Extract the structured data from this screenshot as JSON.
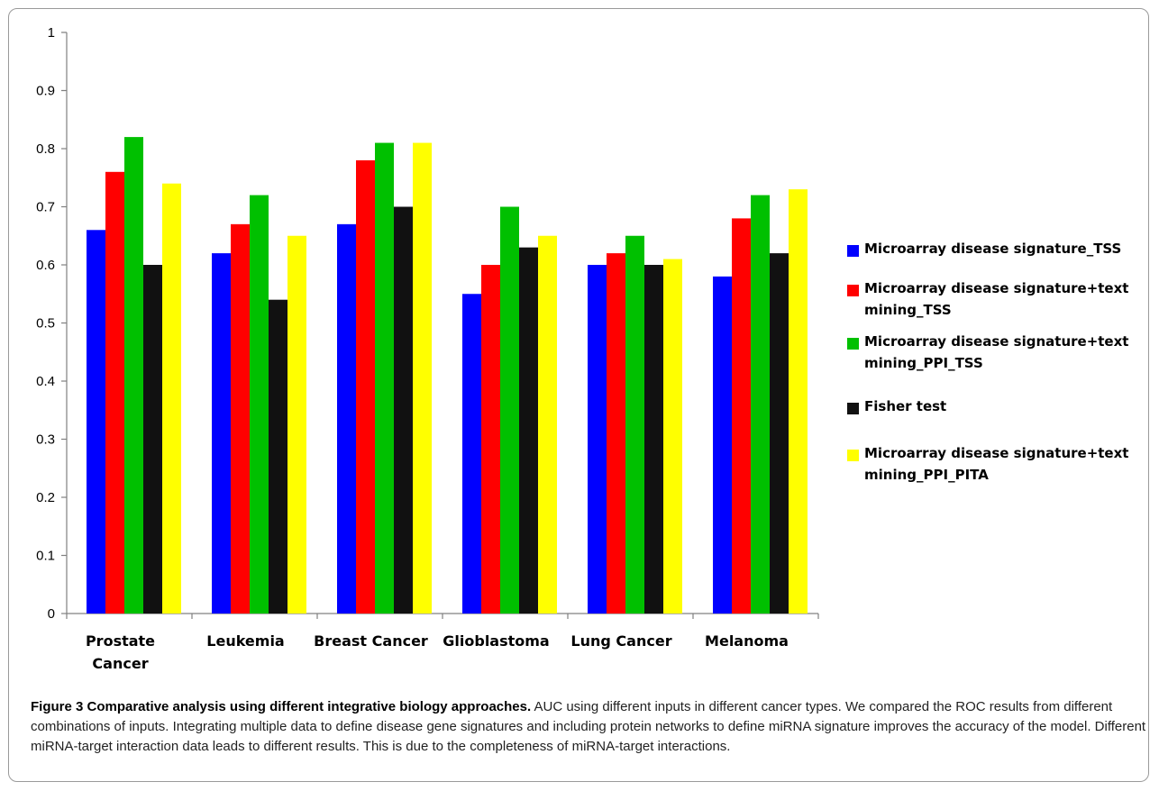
{
  "chart_data": {
    "type": "bar",
    "categories": [
      [
        "Prostate",
        "Cancer"
      ],
      [
        "Leukemia"
      ],
      [
        "Breast Cancer"
      ],
      [
        "Glioblastoma"
      ],
      [
        "Lung Cancer"
      ],
      [
        "Melanoma"
      ]
    ],
    "series": [
      {
        "name": "Microarray disease signature_TSS",
        "color": "#0000ff",
        "values": [
          0.66,
          0.62,
          0.67,
          0.55,
          0.6,
          0.58
        ]
      },
      {
        "name": "Microarray disease signature+text mining_TSS",
        "color": "#ff0000",
        "values": [
          0.76,
          0.67,
          0.78,
          0.6,
          0.62,
          0.68
        ]
      },
      {
        "name": "Microarray disease signature+text mining_PPI_TSS",
        "color": "#00c000",
        "values": [
          0.82,
          0.72,
          0.81,
          0.7,
          0.65,
          0.72
        ]
      },
      {
        "name": "Fisher test",
        "color": "#111111",
        "values": [
          0.6,
          0.54,
          0.7,
          0.63,
          0.6,
          0.62
        ]
      },
      {
        "name": "Microarray disease signature+text mining_PPI_PITA",
        "color": "#ffff00",
        "values": [
          0.74,
          0.65,
          0.81,
          0.65,
          0.61,
          0.73
        ]
      }
    ],
    "yticks": [
      "0",
      "0.1",
      "0.2",
      "0.3",
      "0.4",
      "0.5",
      "0.6",
      "0.7",
      "0.8",
      "0.9",
      "1"
    ],
    "ylim": [
      0,
      1
    ],
    "grid": false,
    "legend_position": "right"
  },
  "legend": {
    "items": [
      {
        "label": "Microarray disease signature_TSS",
        "color": "#0000ff"
      },
      {
        "label": "Microarray disease signature+text mining_TSS",
        "color": "#ff0000"
      },
      {
        "label": "Microarray disease signature+text mining_PPI_TSS",
        "color": "#00c000"
      },
      {
        "label": "Fisher test",
        "color": "#111111"
      },
      {
        "label": "Microarray disease signature+text mining_PPI_PITA",
        "color": "#ffff00"
      }
    ]
  },
  "caption": {
    "title": "Figure 3 Comparative analysis using different integrative biology approaches.",
    "body": " AUC using different inputs in different cancer types. We compared the ROC results from different combinations of inputs. Integrating multiple data to define disease gene signatures and including protein networks to define miRNA signature improves the accuracy of the model. Different miRNA-target interaction data leads to different results. This is due to the completeness of miRNA-target interactions."
  }
}
